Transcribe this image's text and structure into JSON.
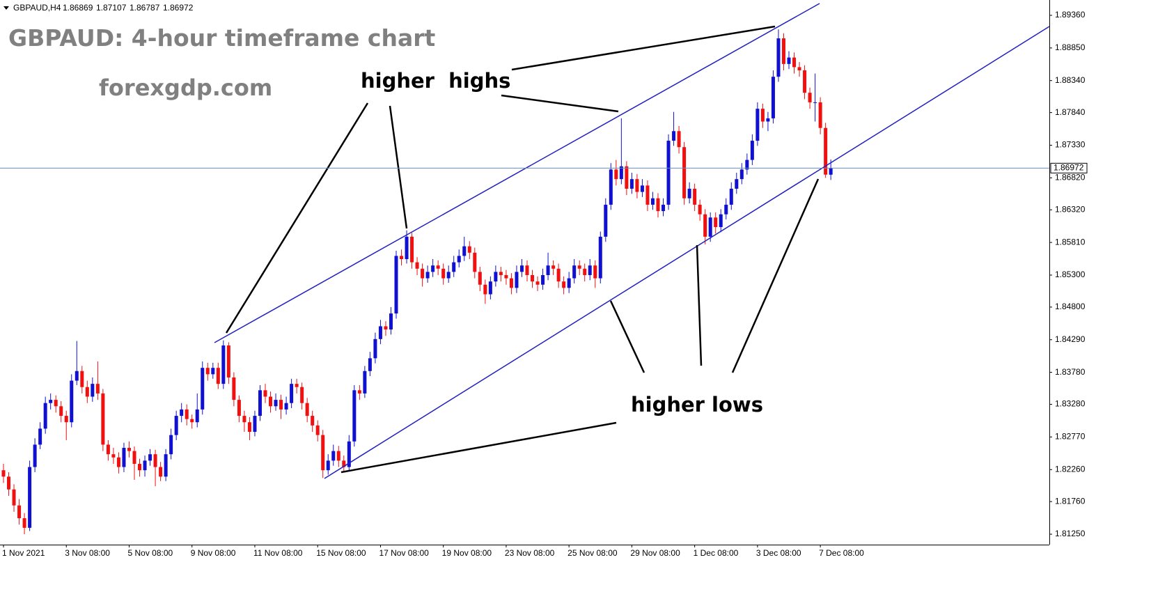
{
  "chart_data": {
    "type": "candlestick",
    "header": "GBPAUD,H4",
    "title": "GBPAUD: 4-hour timeframe chart",
    "subtitle": "forexgdp.com",
    "annotations": [
      "higher  highs",
      "higher lows"
    ],
    "up_color": "#1010d0",
    "down_color": "#f01010",
    "ylim": [
      1.81087,
      1.89545
    ],
    "yticks": [
      {
        "value": 1.8936,
        "label": "1.89360"
      },
      {
        "value": 1.8885,
        "label": "1.88850"
      },
      {
        "value": 1.8834,
        "label": "1.88340"
      },
      {
        "value": 1.8784,
        "label": "1.87840"
      },
      {
        "value": 1.8733,
        "label": "1.87330"
      },
      {
        "value": 1.8682,
        "label": "1.86820"
      },
      {
        "value": 1.8632,
        "label": "1.86320"
      },
      {
        "value": 1.8581,
        "label": "1.85810"
      },
      {
        "value": 1.853,
        "label": "1.85300"
      },
      {
        "value": 1.848,
        "label": "1.84800"
      },
      {
        "value": 1.8429,
        "label": "1.84290"
      },
      {
        "value": 1.8378,
        "label": "1.83780"
      },
      {
        "value": 1.8328,
        "label": "1.83280"
      },
      {
        "value": 1.8277,
        "label": "1.82770"
      },
      {
        "value": 1.8226,
        "label": "1.82260"
      },
      {
        "value": 1.8176,
        "label": "1.81760"
      },
      {
        "value": 1.8125,
        "label": "1.81250"
      }
    ],
    "categories": [
      "1 Nov 2021",
      null,
      null,
      null,
      null,
      null,
      null,
      null,
      null,
      null,
      null,
      null,
      "3 Nov 08:00",
      null,
      null,
      null,
      null,
      null,
      null,
      null,
      null,
      null,
      null,
      null,
      "5 Nov 08:00",
      null,
      null,
      null,
      null,
      null,
      null,
      null,
      null,
      null,
      null,
      null,
      "9 Nov 08:00",
      null,
      null,
      null,
      null,
      null,
      null,
      null,
      null,
      null,
      null,
      null,
      "11 Nov 08:00",
      null,
      null,
      null,
      null,
      null,
      null,
      null,
      null,
      null,
      null,
      null,
      "15 Nov 08:00",
      null,
      null,
      null,
      null,
      null,
      null,
      null,
      null,
      null,
      null,
      null,
      "17 Nov 08:00",
      null,
      null,
      null,
      null,
      null,
      null,
      null,
      null,
      null,
      null,
      null,
      "19 Nov 08:00",
      null,
      null,
      null,
      null,
      null,
      null,
      null,
      null,
      null,
      null,
      null,
      "23 Nov 08:00",
      null,
      null,
      null,
      null,
      null,
      null,
      null,
      null,
      null,
      null,
      null,
      "25 Nov 08:00",
      null,
      null,
      null,
      null,
      null,
      null,
      null,
      null,
      null,
      null,
      null,
      "29 Nov 08:00",
      null,
      null,
      null,
      null,
      null,
      null,
      null,
      null,
      null,
      null,
      null,
      "1 Dec 08:00",
      null,
      null,
      null,
      null,
      null,
      null,
      null,
      null,
      null,
      null,
      null,
      "3 Dec 08:00",
      null,
      null,
      null,
      null,
      null,
      null,
      null,
      null,
      null,
      null,
      null,
      "7 Dec 08:00",
      null,
      null
    ],
    "open": [
      1.8225,
      1.8215,
      1.8195,
      1.817,
      1.815,
      1.8135,
      1.823,
      1.8265,
      1.829,
      1.833,
      1.8335,
      1.8325,
      1.831,
      1.83,
      1.8365,
      1.838,
      1.8355,
      1.834,
      1.836,
      1.8345,
      1.8265,
      1.825,
      1.8245,
      1.823,
      1.826,
      1.8255,
      1.8235,
      1.8225,
      1.824,
      1.825,
      1.823,
      1.8215,
      1.825,
      1.828,
      1.831,
      1.832,
      1.8305,
      1.83,
      1.832,
      1.8385,
      1.8375,
      1.8385,
      1.836,
      1.842,
      1.837,
      1.8335,
      1.831,
      1.83,
      1.8285,
      1.831,
      1.835,
      1.834,
      1.8325,
      1.8335,
      1.832,
      1.833,
      1.836,
      1.8355,
      1.833,
      1.831,
      1.8295,
      1.828,
      1.8225,
      1.824,
      1.8255,
      1.824,
      1.823,
      1.827,
      1.835,
      1.8345,
      1.838,
      1.84,
      1.843,
      1.845,
      1.8445,
      1.847,
      1.856,
      1.8555,
      1.859,
      1.855,
      1.854,
      1.8525,
      1.8535,
      1.8545,
      1.854,
      1.8525,
      1.8535,
      1.855,
      1.856,
      1.8575,
      1.8565,
      1.8535,
      1.8515,
      1.85,
      1.852,
      1.8535,
      1.853,
      1.8525,
      1.851,
      1.8535,
      1.8545,
      1.853,
      1.852,
      1.8515,
      1.853,
      1.8545,
      1.854,
      1.852,
      1.851,
      1.8525,
      1.8545,
      1.854,
      1.853,
      1.8545,
      1.8525,
      1.859,
      1.864,
      1.8695,
      1.868,
      1.87,
      1.8665,
      1.868,
      1.866,
      1.867,
      1.864,
      1.865,
      1.863,
      1.864,
      1.874,
      1.8755,
      1.873,
      1.865,
      1.8665,
      1.864,
      1.8625,
      1.859,
      1.862,
      1.8605,
      1.8625,
      1.864,
      1.8665,
      1.868,
      1.8695,
      1.871,
      1.874,
      1.879,
      1.877,
      1.8775,
      1.884,
      1.89,
      1.886,
      1.887,
      1.8855,
      1.885,
      1.8815,
      1.88,
      1.88,
      1.876,
      1.86869
    ],
    "high": [
      1.8235,
      1.8222,
      1.8203,
      1.818,
      1.8158,
      1.824,
      1.8275,
      1.83,
      1.834,
      1.8345,
      1.8342,
      1.8333,
      1.8318,
      1.8375,
      1.8427,
      1.8388,
      1.8365,
      1.837,
      1.8395,
      1.8352,
      1.8272,
      1.826,
      1.8253,
      1.8268,
      1.827,
      1.8262,
      1.8243,
      1.8248,
      1.8258,
      1.8257,
      1.8238,
      1.8258,
      1.829,
      1.8318,
      1.833,
      1.8328,
      1.8312,
      1.8345,
      1.8395,
      1.8393,
      1.8393,
      1.8393,
      1.8428,
      1.8425,
      1.8378,
      1.8342,
      1.8318,
      1.8308,
      1.8318,
      1.8358,
      1.836,
      1.8348,
      1.8345,
      1.8343,
      1.834,
      1.8368,
      1.8368,
      1.8362,
      1.8338,
      1.8318,
      1.8303,
      1.8288,
      1.825,
      1.8265,
      1.8263,
      1.8248,
      1.828,
      1.8358,
      1.8358,
      1.8388,
      1.841,
      1.844,
      1.846,
      1.8458,
      1.848,
      1.8568,
      1.857,
      1.86,
      1.8596,
      1.8558,
      1.8548,
      1.8545,
      1.8555,
      1.8553,
      1.8548,
      1.8545,
      1.856,
      1.857,
      1.859,
      1.8583,
      1.8573,
      1.8543,
      1.8523,
      1.8528,
      1.8545,
      1.8543,
      1.8538,
      1.8533,
      1.8545,
      1.8555,
      1.8553,
      1.8538,
      1.8528,
      1.854,
      1.8565,
      1.8553,
      1.8548,
      1.8528,
      1.8535,
      1.8555,
      1.8553,
      1.8548,
      1.8555,
      1.8553,
      1.8598,
      1.865,
      1.8705,
      1.871,
      1.8775,
      1.8708,
      1.869,
      1.8688,
      1.868,
      1.8678,
      1.866,
      1.8658,
      1.865,
      1.875,
      1.8785,
      1.8763,
      1.8738,
      1.8675,
      1.8673,
      1.8648,
      1.8633,
      1.8628,
      1.8628,
      1.8633,
      1.865,
      1.8675,
      1.869,
      1.8705,
      1.872,
      1.875,
      1.88,
      1.8798,
      1.8785,
      1.885,
      1.8914,
      1.8908,
      1.888,
      1.8878,
      1.8863,
      1.8858,
      1.8823,
      1.8845,
      1.8808,
      1.8768,
      1.87107
    ],
    "low": [
      1.8205,
      1.8185,
      1.816,
      1.814,
      1.8125,
      1.813,
      1.8222,
      1.8258,
      1.8282,
      1.832,
      1.8315,
      1.83,
      1.8272,
      1.8292,
      1.8358,
      1.8345,
      1.833,
      1.8332,
      1.8335,
      1.8255,
      1.824,
      1.8235,
      1.822,
      1.8222,
      1.8245,
      1.821,
      1.8215,
      1.8215,
      1.8232,
      1.82,
      1.8208,
      1.8208,
      1.8242,
      1.8272,
      1.83,
      1.8295,
      1.829,
      1.8292,
      1.8312,
      1.8365,
      1.8368,
      1.8352,
      1.8352,
      1.836,
      1.8325,
      1.83,
      1.8285,
      1.8272,
      1.8278,
      1.8302,
      1.833,
      1.8315,
      1.8318,
      1.8305,
      1.8312,
      1.8322,
      1.8345,
      1.832,
      1.83,
      1.8285,
      1.827,
      1.8213,
      1.8218,
      1.8232,
      1.823,
      1.8222,
      1.8224,
      1.8262,
      1.8335,
      1.8338,
      1.8372,
      1.8392,
      1.8422,
      1.8435,
      1.8437,
      1.8462,
      1.8545,
      1.8548,
      1.854,
      1.853,
      1.8512,
      1.8518,
      1.8527,
      1.853,
      1.8515,
      1.8518,
      1.8527,
      1.8542,
      1.8552,
      1.8555,
      1.8525,
      1.8505,
      1.8485,
      1.8492,
      1.8512,
      1.852,
      1.8515,
      1.85,
      1.8502,
      1.8527,
      1.852,
      1.851,
      1.8505,
      1.8507,
      1.8522,
      1.853,
      1.851,
      1.85,
      1.8502,
      1.8517,
      1.853,
      1.852,
      1.8522,
      1.851,
      1.8517,
      1.8582,
      1.8632,
      1.867,
      1.8672,
      1.8655,
      1.8657,
      1.865,
      1.8652,
      1.863,
      1.8632,
      1.862,
      1.8622,
      1.8632,
      1.8732,
      1.872,
      1.864,
      1.8642,
      1.863,
      1.8615,
      1.8578,
      1.8582,
      1.8595,
      1.8597,
      1.8617,
      1.8632,
      1.8657,
      1.8672,
      1.8687,
      1.8702,
      1.8732,
      1.876,
      1.8755,
      1.8767,
      1.8832,
      1.885,
      1.8852,
      1.8845,
      1.884,
      1.8805,
      1.879,
      1.877,
      1.875,
      1.8682,
      1.86787
    ],
    "close": [
      1.8215,
      1.8195,
      1.817,
      1.815,
      1.8135,
      1.823,
      1.8265,
      1.829,
      1.833,
      1.8335,
      1.8325,
      1.831,
      1.83,
      1.8365,
      1.838,
      1.8355,
      1.834,
      1.836,
      1.8345,
      1.8265,
      1.825,
      1.8245,
      1.823,
      1.826,
      1.8255,
      1.8235,
      1.8225,
      1.824,
      1.825,
      1.823,
      1.8215,
      1.825,
      1.828,
      1.831,
      1.832,
      1.8305,
      1.83,
      1.832,
      1.8385,
      1.8375,
      1.8385,
      1.836,
      1.842,
      1.837,
      1.8335,
      1.831,
      1.83,
      1.8285,
      1.831,
      1.835,
      1.834,
      1.8325,
      1.8335,
      1.832,
      1.833,
      1.836,
      1.8355,
      1.833,
      1.831,
      1.8295,
      1.828,
      1.8225,
      1.824,
      1.8255,
      1.824,
      1.823,
      1.827,
      1.835,
      1.8345,
      1.838,
      1.84,
      1.843,
      1.845,
      1.8445,
      1.847,
      1.856,
      1.8555,
      1.859,
      1.855,
      1.854,
      1.8525,
      1.8535,
      1.8545,
      1.854,
      1.8525,
      1.8535,
      1.855,
      1.856,
      1.8575,
      1.8565,
      1.8535,
      1.8515,
      1.85,
      1.852,
      1.8535,
      1.853,
      1.8525,
      1.851,
      1.8535,
      1.8545,
      1.853,
      1.852,
      1.8515,
      1.853,
      1.8545,
      1.854,
      1.852,
      1.851,
      1.8525,
      1.8545,
      1.854,
      1.853,
      1.8545,
      1.8525,
      1.859,
      1.864,
      1.8695,
      1.868,
      1.87,
      1.8665,
      1.868,
      1.866,
      1.867,
      1.864,
      1.865,
      1.863,
      1.864,
      1.874,
      1.8755,
      1.873,
      1.865,
      1.8665,
      1.864,
      1.8625,
      1.859,
      1.862,
      1.8605,
      1.8625,
      1.864,
      1.8665,
      1.868,
      1.8695,
      1.871,
      1.874,
      1.879,
      1.877,
      1.8775,
      1.884,
      1.89,
      1.886,
      1.887,
      1.8855,
      1.885,
      1.8815,
      1.88,
      1.88,
      1.876,
      1.8687,
      1.86972
    ]
  }
}
